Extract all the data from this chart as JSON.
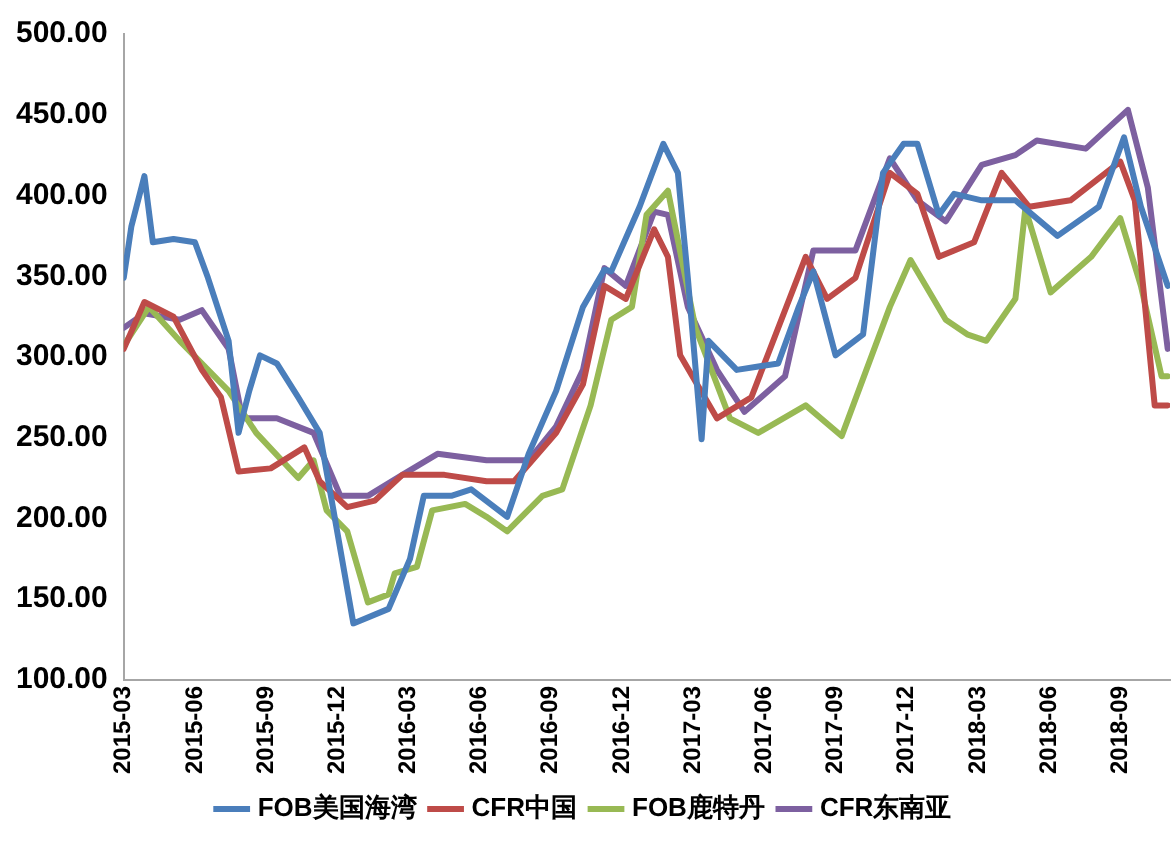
{
  "chart_data": {
    "type": "line",
    "xlim": [
      "2015-03-01",
      "2018-11-04"
    ],
    "xticks": [
      "2015-03",
      "2015-06",
      "2015-09",
      "2015-12",
      "2016-03",
      "2016-06",
      "2016-09",
      "2016-12",
      "2017-03",
      "2017-06",
      "2017-09",
      "2017-12",
      "2018-03",
      "2018-06",
      "2018-09"
    ],
    "ylim": [
      100,
      500
    ],
    "yticks": [
      {
        "value": 100,
        "label": "100.00"
      },
      {
        "value": 150,
        "label": "150.00"
      },
      {
        "value": 200,
        "label": "200.00"
      },
      {
        "value": 250,
        "label": "250.00"
      },
      {
        "value": 300,
        "label": "300.00"
      },
      {
        "value": 350,
        "label": "350.00"
      },
      {
        "value": 400,
        "label": "400.00"
      },
      {
        "value": 450,
        "label": "450.00"
      },
      {
        "value": 500,
        "label": "500.00"
      }
    ],
    "grid": false,
    "legend": "bottom",
    "marker": "none",
    "line_style": "solid",
    "series": [
      {
        "name": "FOB美国海湾",
        "color": "#4a7ebb",
        "x": [
          "2015-03-01",
          "2015-03-11",
          "2015-03-28",
          "2015-04-08",
          "2015-05-04",
          "2015-06-01",
          "2015-06-18",
          "2015-07-14",
          "2015-07-27",
          "2015-08-10",
          "2015-08-24",
          "2015-09-15",
          "2015-10-12",
          "2015-11-09",
          "2015-11-27",
          "2015-12-22",
          "2016-02-06",
          "2016-03-03",
          "2016-03-21",
          "2016-04-26",
          "2016-05-21",
          "2016-07-06",
          "2016-08-03",
          "2016-09-08",
          "2016-10-12",
          "2016-11-09",
          "2016-11-18",
          "2016-12-24",
          "2017-01-24",
          "2017-02-12",
          "2017-02-25",
          "2017-03-12",
          "2017-03-21",
          "2017-04-27",
          "2017-06-19",
          "2017-07-15",
          "2017-08-03",
          "2017-09-01",
          "2017-10-06",
          "2017-11-01",
          "2017-11-28",
          "2017-12-15",
          "2018-01-12",
          "2018-02-01",
          "2018-03-06",
          "2018-04-19",
          "2018-06-12",
          "2018-08-04",
          "2018-09-06",
          "2018-09-28",
          "2018-11-01"
        ],
        "values": [
          349,
          381,
          412,
          371,
          373,
          371,
          349,
          310,
          253,
          279,
          301,
          296,
          275,
          253,
          205,
          135,
          144,
          175,
          214,
          214,
          218,
          201,
          240,
          279,
          331,
          354,
          353,
          393,
          432,
          414,
          349,
          249,
          310,
          292,
          296,
          331,
          353,
          301,
          314,
          414,
          432,
          432,
          388,
          401,
          397,
          397,
          375,
          393,
          436,
          393,
          344
        ]
      },
      {
        "name": "CFR中国",
        "color": "#be4b48",
        "x": [
          "2015-03-01",
          "2015-03-28",
          "2015-05-04",
          "2015-06-10",
          "2015-07-04",
          "2015-07-27",
          "2015-09-07",
          "2015-10-20",
          "2015-11-09",
          "2015-12-14",
          "2016-01-19",
          "2016-02-24",
          "2016-04-17",
          "2016-06-10",
          "2016-07-15",
          "2016-09-08",
          "2016-10-12",
          "2016-11-09",
          "2016-12-06",
          "2017-01-12",
          "2017-01-30",
          "2017-02-15",
          "2017-04-01",
          "2017-05-15",
          "2017-07-24",
          "2017-08-21",
          "2017-09-27",
          "2017-11-10",
          "2017-12-15",
          "2018-01-12",
          "2018-02-27",
          "2018-04-01",
          "2018-05-06",
          "2018-06-29",
          "2018-09-01",
          "2018-09-20",
          "2018-10-15",
          "2018-11-01"
        ],
        "values": [
          305,
          334,
          325,
          292,
          275,
          229,
          231,
          244,
          223,
          207,
          211,
          227,
          227,
          223,
          223,
          253,
          283,
          344,
          336,
          379,
          362,
          301,
          262,
          275,
          362,
          336,
          349,
          414,
          401,
          362,
          371,
          414,
          393,
          397,
          421,
          397,
          270,
          270
        ]
      },
      {
        "name": "FOB鹿特丹",
        "color": "#98b954",
        "x": [
          "2015-03-01",
          "2015-04-03",
          "2015-05-12",
          "2015-07-14",
          "2015-08-19",
          "2015-10-12",
          "2015-11-01",
          "2015-11-18",
          "2015-12-14",
          "2016-01-10",
          "2016-02-06",
          "2016-02-14",
          "2016-03-12",
          "2016-04-01",
          "2016-05-13",
          "2016-06-10",
          "2016-07-06",
          "2016-08-21",
          "2016-09-16",
          "2016-10-22",
          "2016-11-18",
          "2016-12-14",
          "2017-01-02",
          "2017-01-30",
          "2017-03-04",
          "2017-04-18",
          "2017-05-24",
          "2017-07-24",
          "2017-09-09",
          "2017-11-10",
          "2017-12-06",
          "2018-01-21",
          "2018-02-18",
          "2018-03-12",
          "2018-04-19",
          "2018-05-01",
          "2018-06-03",
          "2018-07-25",
          "2018-09-01",
          "2018-09-28",
          "2018-10-24",
          "2018-11-01"
        ],
        "values": [
          307,
          331,
          310,
          279,
          253,
          225,
          236,
          205,
          192,
          148,
          153,
          166,
          170,
          205,
          209,
          201,
          192,
          214,
          218,
          270,
          323,
          331,
          388,
          403,
          318,
          262,
          253,
          270,
          251,
          331,
          360,
          323,
          314,
          310,
          336,
          392,
          340,
          362,
          386,
          344,
          288,
          288
        ]
      },
      {
        "name": "CFR东南亚",
        "color": "#7d60a0",
        "x": [
          "2015-03-01",
          "2015-03-28",
          "2015-05-12",
          "2015-06-10",
          "2015-07-14",
          "2015-08-01",
          "2015-09-15",
          "2015-11-01",
          "2015-12-05",
          "2016-01-10",
          "2016-02-24",
          "2016-04-08",
          "2016-06-10",
          "2016-08-03",
          "2016-09-08",
          "2016-10-12",
          "2016-11-09",
          "2016-12-06",
          "2017-01-12",
          "2017-01-30",
          "2017-02-25",
          "2017-04-01",
          "2017-05-06",
          "2017-06-28",
          "2017-08-03",
          "2017-09-27",
          "2017-11-10",
          "2017-12-15",
          "2018-01-21",
          "2018-03-06",
          "2018-04-19",
          "2018-05-16",
          "2018-07-18",
          "2018-09-11",
          "2018-10-06",
          "2018-11-01"
        ],
        "values": [
          318,
          327,
          323,
          329,
          305,
          262,
          262,
          253,
          214,
          214,
          227,
          240,
          236,
          236,
          257,
          292,
          355,
          344,
          390,
          388,
          331,
          292,
          266,
          288,
          366,
          366,
          423,
          397,
          384,
          419,
          425,
          434,
          429,
          453,
          405,
          305
        ]
      }
    ]
  }
}
